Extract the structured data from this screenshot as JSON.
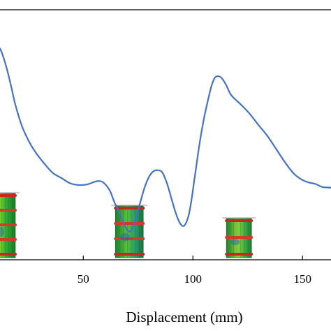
{
  "chart_data": {
    "type": "line",
    "title": "",
    "xlabel": "Displacement  (mm)",
    "ylabel": "",
    "xlim": [
      12,
      163
    ],
    "ylim": [
      0,
      100
    ],
    "x_ticks": [
      50,
      100,
      150
    ],
    "grid": false,
    "legend": "none",
    "line_color": "#4472C4",
    "series": [
      {
        "x": [
          12,
          13,
          15,
          17,
          19,
          22,
          25,
          28,
          32,
          36,
          40,
          44,
          48,
          52,
          56,
          59,
          62,
          64,
          66,
          68,
          69.5,
          71,
          72.5,
          74,
          76,
          78,
          80,
          82,
          84,
          86,
          88,
          90,
          92,
          94,
          96,
          98,
          99.5,
          101,
          103,
          105,
          107,
          108.5,
          110,
          111.5,
          113,
          115,
          117,
          119,
          122,
          126,
          130,
          134,
          138,
          142,
          146,
          150,
          153,
          156,
          159,
          162,
          163
        ],
        "y": [
          84.5,
          82.5,
          76.8,
          69.7,
          62.0,
          53.5,
          47.7,
          43.3,
          38.7,
          34.8,
          32.7,
          30.6,
          29.9,
          30.2,
          31.4,
          31.0,
          27.8,
          23.5,
          19.6,
          15.5,
          12.6,
          11.2,
          12.7,
          16.9,
          23.0,
          29.0,
          33.2,
          35.4,
          35.8,
          35.0,
          31.0,
          25.2,
          19.2,
          14.8,
          13.6,
          17.6,
          24.8,
          34.1,
          46.3,
          56.3,
          64.3,
          69.6,
          72.8,
          73.4,
          72.8,
          70.2,
          66.5,
          64.4,
          62.0,
          58.3,
          53.8,
          49.5,
          44.3,
          39.0,
          34.5,
          31.9,
          30.9,
          30.3,
          29.1,
          28.9,
          28.8
        ]
      }
    ],
    "insets": [
      {
        "x": 12,
        "kind": "tall"
      },
      {
        "x": 71,
        "kind": "medium"
      },
      {
        "x": 121,
        "kind": "short"
      }
    ]
  }
}
